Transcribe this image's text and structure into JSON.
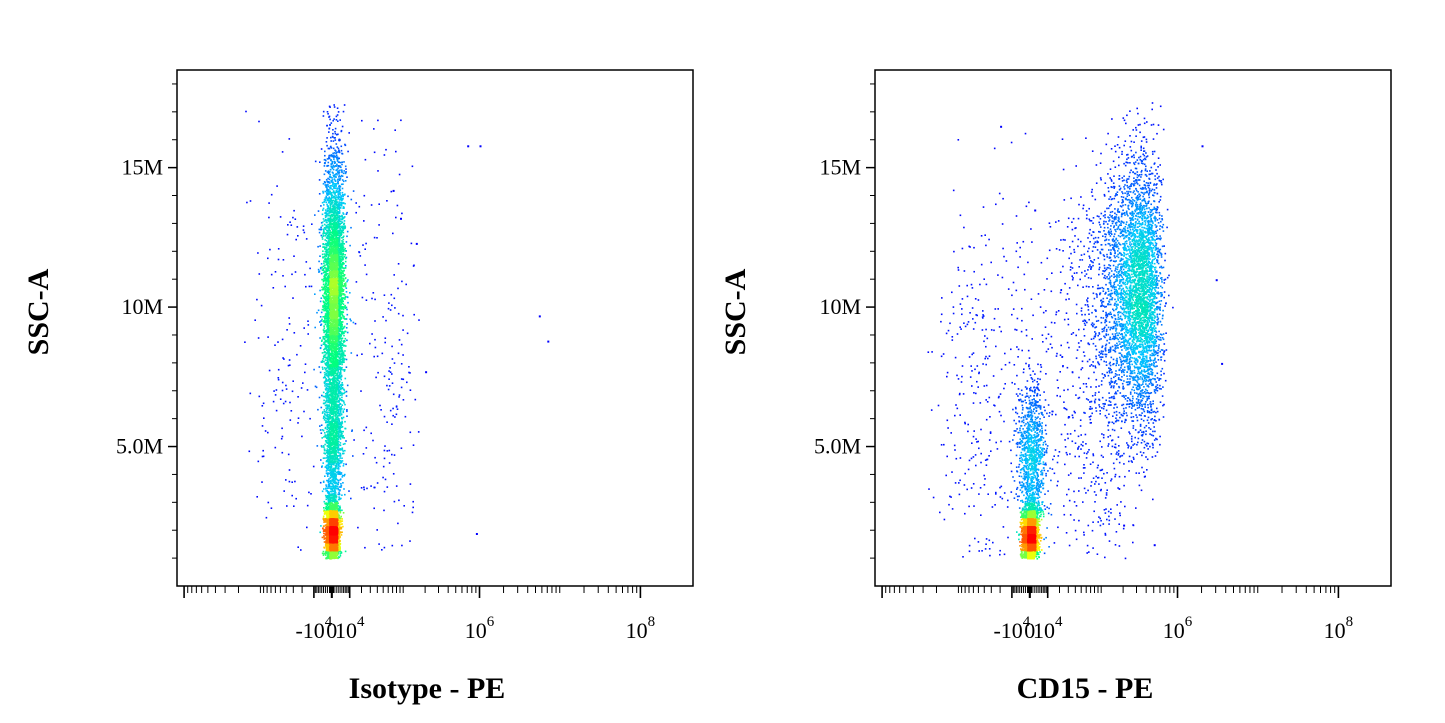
{
  "chart_data": [
    {
      "type": "scatter",
      "subtype": "flow-cytometry-density-dot-plot",
      "title": "",
      "xlabel": "Isotype - PE",
      "ylabel": "SSC-A",
      "x_scale": "biexponential",
      "xlim": [
        -100000,
        150000000
      ],
      "ylim": [
        0,
        18500000
      ],
      "x_ticks": [
        {
          "value": -10000,
          "base": "-10",
          "exp": "4"
        },
        {
          "value": 0,
          "base": "0",
          "exp": ""
        },
        {
          "value": 10000,
          "base": "10",
          "exp": "4"
        },
        {
          "value": 1000000,
          "base": "10",
          "exp": "6"
        },
        {
          "value": 100000000,
          "base": "10",
          "exp": "8"
        }
      ],
      "y_ticks": [
        {
          "value": 5000000,
          "label": "5.0M"
        },
        {
          "value": 10000000,
          "label": "10M"
        },
        {
          "value": 15000000,
          "label": "15M"
        }
      ],
      "colormap": [
        "#0000ff",
        "#00c8ff",
        "#00ff80",
        "#ffff00",
        "#ff8000",
        "#ff0000"
      ],
      "populations": [
        {
          "name": "",
          "x_center": 0,
          "y_center": 1900000,
          "x_spread": 1600,
          "y_spread": 550000,
          "weight": 0.3
        },
        {
          "name": "",
          "x_center": 700,
          "y_center": 10500000,
          "x_spread": 2600,
          "y_spread": 2500000,
          "weight": 0.52
        },
        {
          "name": "",
          "x_center": 400,
          "y_center": 5000000,
          "x_spread": 2100,
          "y_spread": 1300000,
          "weight": 0.13
        },
        {
          "name": "",
          "x_center": 8000,
          "y_center": 8000000,
          "x_spread": 60000,
          "y_spread": 4500000,
          "weight": 0.05
        }
      ],
      "outliers": [
        {
          "x": 1000000,
          "y": 15800000
        },
        {
          "x": 700000,
          "y": 15800000
        },
        {
          "x": 5500000,
          "y": 9700000
        },
        {
          "x": 7000000,
          "y": 8800000
        },
        {
          "x": 90000,
          "y": 13200000
        },
        {
          "x": 150000,
          "y": 12300000
        },
        {
          "x": 70000,
          "y": 14200000
        },
        {
          "x": 200000,
          "y": 7700000
        },
        {
          "x": 900000,
          "y": 1900000
        }
      ]
    },
    {
      "type": "scatter",
      "subtype": "flow-cytometry-density-dot-plot",
      "title": "",
      "xlabel": "CD15 - PE",
      "ylabel": "SSC-A",
      "x_scale": "biexponential",
      "xlim": [
        -100000,
        150000000
      ],
      "ylim": [
        0,
        18500000
      ],
      "x_ticks": [
        {
          "value": -10000,
          "base": "-10",
          "exp": "4"
        },
        {
          "value": 0,
          "base": "0",
          "exp": ""
        },
        {
          "value": 10000,
          "base": "10",
          "exp": "4"
        },
        {
          "value": 1000000,
          "base": "10",
          "exp": "6"
        },
        {
          "value": 100000000,
          "base": "10",
          "exp": "8"
        }
      ],
      "y_ticks": [
        {
          "value": 5000000,
          "label": "5.0M"
        },
        {
          "value": 10000000,
          "label": "10M"
        },
        {
          "value": 15000000,
          "label": "15M"
        }
      ],
      "colormap": [
        "#0000ff",
        "#00c8ff",
        "#00ff80",
        "#ffff00",
        "#ff8000",
        "#ff0000"
      ],
      "populations": [
        {
          "name": "",
          "x_center": -200,
          "y_center": 1800000,
          "x_spread": 1700,
          "y_spread": 500000,
          "weight": 0.3
        },
        {
          "name": "",
          "x_center": 300000,
          "y_center": 10500000,
          "x_spread": 140000,
          "y_spread": 2400000,
          "weight": 0.5
        },
        {
          "name": "",
          "x_center": 800,
          "y_center": 4600000,
          "x_spread": 3500,
          "y_spread": 1400000,
          "weight": 0.12
        },
        {
          "name": "",
          "x_center": 30000,
          "y_center": 5500000,
          "x_spread": 90000,
          "y_spread": 3500000,
          "weight": 0.08
        }
      ],
      "outliers": [
        {
          "x": -20000,
          "y": 16500000
        },
        {
          "x": 2000,
          "y": 13500000
        },
        {
          "x": 2000000,
          "y": 15800000
        },
        {
          "x": 3000000,
          "y": 11000000
        },
        {
          "x": 3500000,
          "y": 8000000
        },
        {
          "x": 200000,
          "y": 2200000
        },
        {
          "x": 500000,
          "y": 1500000
        }
      ]
    }
  ]
}
